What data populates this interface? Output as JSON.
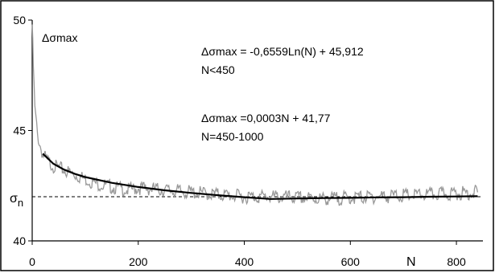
{
  "chart_data": {
    "type": "line",
    "title": "",
    "xlabel": "N",
    "ylabel": "Δσmax",
    "xlim": [
      0,
      850
    ],
    "ylim": [
      40,
      50
    ],
    "x_ticks": [
      0,
      200,
      400,
      600,
      800
    ],
    "y_ticks": [
      40,
      45,
      50
    ],
    "x_tick_labels": [
      "0",
      "200",
      "400",
      "600",
      "800"
    ],
    "y_tick_labels": [
      "40",
      "45",
      "50"
    ],
    "grid": false,
    "reference_line": {
      "label_main": "σ",
      "label_sub": "n",
      "y": 42.0,
      "style": "dashed"
    },
    "series": [
      {
        "name": "",
        "color": "#999999",
        "x": [
          0,
          2,
          5,
          10,
          15,
          20,
          30,
          40,
          60,
          80,
          100,
          120,
          140,
          160,
          180,
          200,
          250,
          300,
          350,
          400,
          450,
          500,
          550,
          600,
          650,
          700,
          750,
          800,
          840
        ],
        "values": [
          49.8,
          48.0,
          46.0,
          44.8,
          44.3,
          43.9,
          43.6,
          43.4,
          43.2,
          43.0,
          42.8,
          42.6,
          42.5,
          42.4,
          42.3,
          42.4,
          42.3,
          42.2,
          42.1,
          42.0,
          42.0,
          41.95,
          41.9,
          41.95,
          42.0,
          42.05,
          42.1,
          42.15,
          42.2
        ]
      },
      {
        "name": "",
        "color": "#000000",
        "x": [
          20,
          40,
          60,
          80,
          100,
          150,
          200,
          250,
          300,
          350,
          400,
          450,
          500,
          550,
          600,
          650,
          700,
          750,
          800,
          840
        ],
        "values": [
          43.95,
          43.49,
          43.23,
          43.04,
          42.89,
          42.63,
          42.44,
          42.29,
          42.17,
          42.07,
          41.98,
          41.9,
          41.92,
          41.94,
          41.95,
          41.97,
          41.98,
          42.0,
          42.01,
          42.02
        ]
      }
    ],
    "annotations": [
      {
        "line1": "Δσmax = -0,6559Ln(N) + 45,912",
        "line2": "N<450"
      },
      {
        "line1": "Δσmax =0,0003N + 41,77",
        "line2": "N=450-1000"
      }
    ]
  }
}
